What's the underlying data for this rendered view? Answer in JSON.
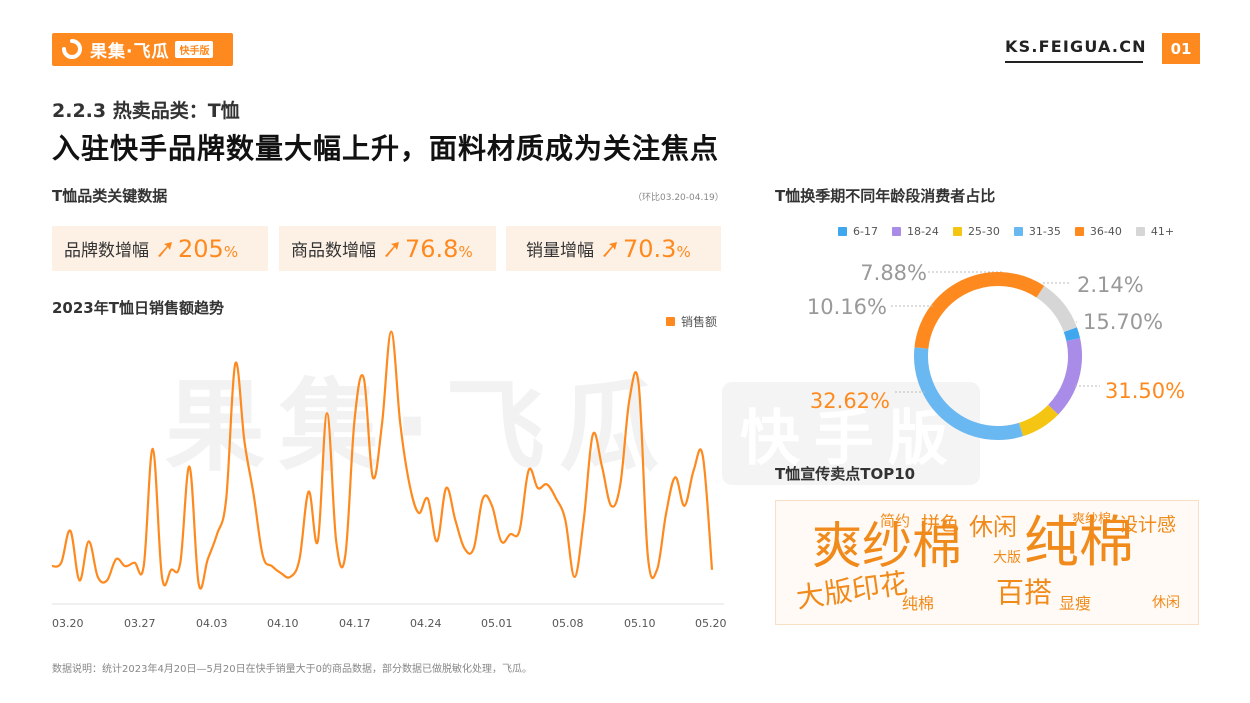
{
  "header": {
    "logo_text": "果集·飞瓜",
    "logo_badge": "快手版",
    "site": "KS.FEIGUA.CN",
    "page_number": "01"
  },
  "section_title": "2.2.3 热卖品类：T恤",
  "headline": "入驻快手品牌数量大幅上升，面料材质成为关注焦点",
  "key_data": {
    "title": "T恤品类关键数据",
    "note": "（环比03.20-04.19）",
    "metrics": [
      {
        "label": "品牌数增幅",
        "value": "205",
        "unit": "%"
      },
      {
        "label": "商品数增幅",
        "value": "76.8",
        "unit": "%"
      },
      {
        "label": "销量增幅",
        "value": "70.3",
        "unit": "%"
      }
    ]
  },
  "watermark": {
    "text": "果集·飞瓜",
    "badge": "快手版"
  },
  "footnote": "数据说明：统计2023年4月20日—5月20日在快手销量大于0的商品数据，部分数据已做脱敏化处理，飞瓜。",
  "chart_data": [
    {
      "type": "line",
      "title": "2023年T恤日销售额趋势",
      "xlabel": "",
      "ylabel": "",
      "x_ticks": [
        "03.20",
        "03.27",
        "04.03",
        "04.10",
        "04.17",
        "04.24",
        "05.01",
        "05.08",
        "05.10",
        "05.20"
      ],
      "series": [
        {
          "name": "销售额",
          "color": "#fe8a1f",
          "values": [
            5,
            6,
            15,
            1,
            12,
            2,
            1,
            7,
            5,
            6,
            5,
            38,
            2,
            4,
            6,
            33,
            0,
            7,
            14,
            24,
            62,
            40,
            25,
            8,
            5,
            3,
            2,
            7,
            26,
            12,
            48,
            12,
            8,
            46,
            58,
            30,
            45,
            71,
            45,
            28,
            20,
            24,
            12,
            27,
            18,
            10,
            10,
            24,
            22,
            12,
            14,
            15,
            32,
            27,
            28,
            24,
            18,
            2,
            18,
            42,
            33,
            22,
            28,
            52,
            56,
            8,
            4,
            20,
            30,
            22,
            32,
            36,
            4
          ]
        }
      ],
      "grid": false,
      "legend_position": "top-right"
    },
    {
      "type": "pie",
      "title": "T恤换季期不同年龄段消费者占比",
      "categories": [
        "6-17",
        "18-24",
        "25-30",
        "31-35",
        "36-40",
        "41+"
      ],
      "values": [
        2.14,
        15.7,
        7.88,
        31.5,
        32.62,
        10.16
      ],
      "value_labels": [
        "2.14%",
        "15.70%",
        "7.88%",
        "31.50%",
        "32.62%",
        "10.16%"
      ],
      "colors": [
        "#3fa7ee",
        "#a98be8",
        "#f5c514",
        "#6ab8f2",
        "#fe8a1f",
        "#d6d6d6"
      ],
      "legend_position": "top"
    }
  ],
  "wordcloud": {
    "title": "T恤宣传卖点TOP10",
    "words": [
      {
        "text": "爽纱棉",
        "weight": 10
      },
      {
        "text": "纯棉",
        "weight": 10
      },
      {
        "text": "大版印花",
        "weight": 6
      },
      {
        "text": "百搭",
        "weight": 6
      },
      {
        "text": "休闲",
        "weight": 5
      },
      {
        "text": "拼色",
        "weight": 4
      },
      {
        "text": "设计感",
        "weight": 4
      },
      {
        "text": "简约",
        "weight": 3
      },
      {
        "text": "爽纱棉",
        "weight": 2
      },
      {
        "text": "大版",
        "weight": 2
      },
      {
        "text": "显瘦",
        "weight": 2
      },
      {
        "text": "纯棉",
        "weight": 2
      },
      {
        "text": "休闲",
        "weight": 2
      }
    ]
  }
}
